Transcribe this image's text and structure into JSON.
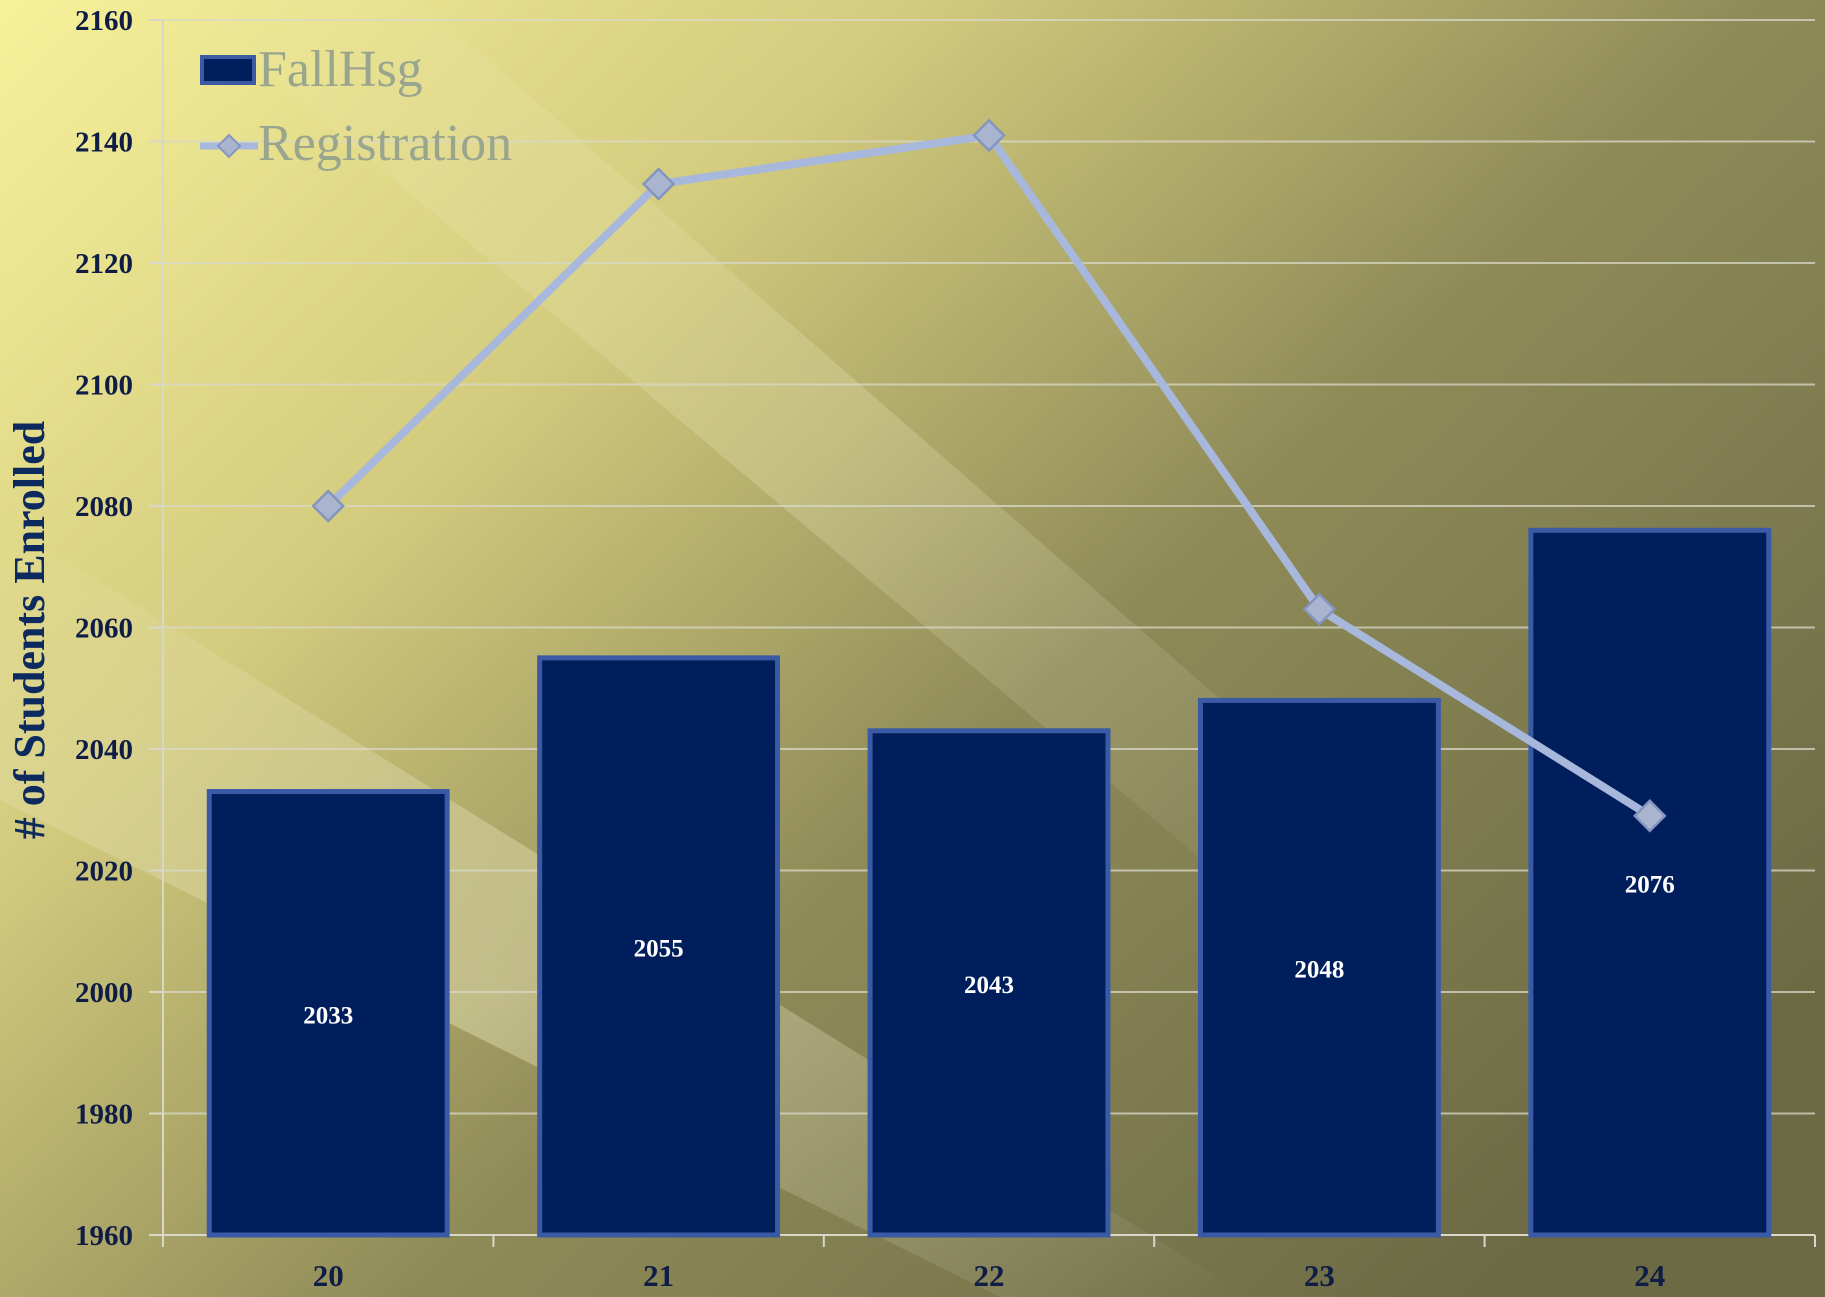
{
  "colors": {
    "background_light": "#f7f19a",
    "background_dark": "#6b6a45",
    "bar_fill": "#001e5c",
    "bar_stroke": "#3a5aa6",
    "line": "#a7b8dc",
    "marker_fill": "#a9b5cf",
    "marker_stroke": "#8595bd",
    "gridline": "#d8d8c8",
    "axis_text": "#0f1c45"
  },
  "chart_data": {
    "type": "bar",
    "categories": [
      "20",
      "21",
      "22",
      "23",
      "24"
    ],
    "series": [
      {
        "name": "FallHsg",
        "type": "bar",
        "values": [
          2033,
          2055,
          2043,
          2048,
          2076
        ]
      },
      {
        "name": "Registration",
        "type": "line",
        "marker": "diamond",
        "values": [
          2080,
          2133,
          2141,
          2063,
          2029
        ]
      }
    ],
    "xlabel": "",
    "ylabel": "# of Students Enrolled",
    "ylim": [
      1960,
      2160
    ],
    "yticks": [
      1960,
      1980,
      2000,
      2020,
      2040,
      2060,
      2080,
      2100,
      2120,
      2140,
      2160
    ],
    "grid": true,
    "legend": "top-left"
  }
}
